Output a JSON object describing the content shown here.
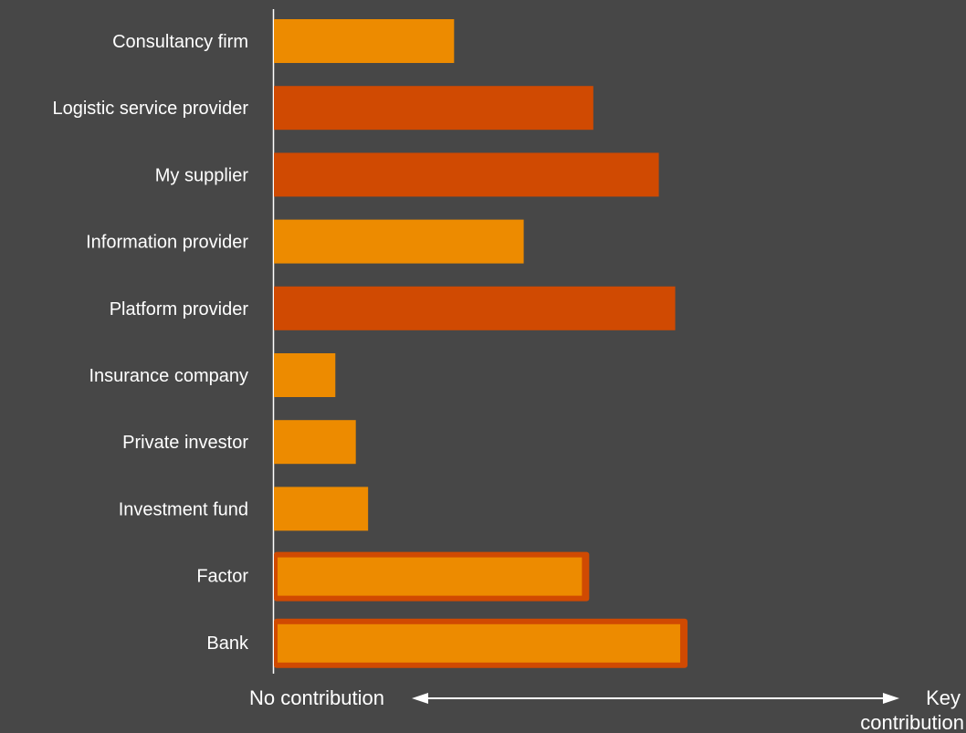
{
  "chart_data": {
    "type": "bar",
    "orientation": "horizontal",
    "categories": [
      "Consultancy firm",
      "Logistic service provider",
      "My supplier",
      "Information provider",
      "Platform provider",
      "Insurance company",
      "Private investor",
      "Investment fund",
      "Factor",
      "Bank"
    ],
    "values": [
      0.44,
      0.78,
      0.94,
      0.61,
      0.98,
      0.15,
      0.2,
      0.23,
      0.77,
      1.01
    ],
    "xlim": [
      0,
      1.65
    ],
    "highlight_outlined": [
      false,
      false,
      false,
      false,
      false,
      false,
      false,
      false,
      true,
      true
    ],
    "bar_colors": [
      "#ed8b00",
      "#d04a02",
      "#d04a02",
      "#ed8b00",
      "#d04a02",
      "#ed8b00",
      "#ed8b00",
      "#ed8b00",
      "#ed8b00",
      "#ed8b00"
    ],
    "outline_color": "#d04a02",
    "axis_color": "#ffffff",
    "scale": {
      "left_label": "No contribution",
      "right_label_line1": "Key",
      "right_label_line2": "contribution"
    }
  }
}
